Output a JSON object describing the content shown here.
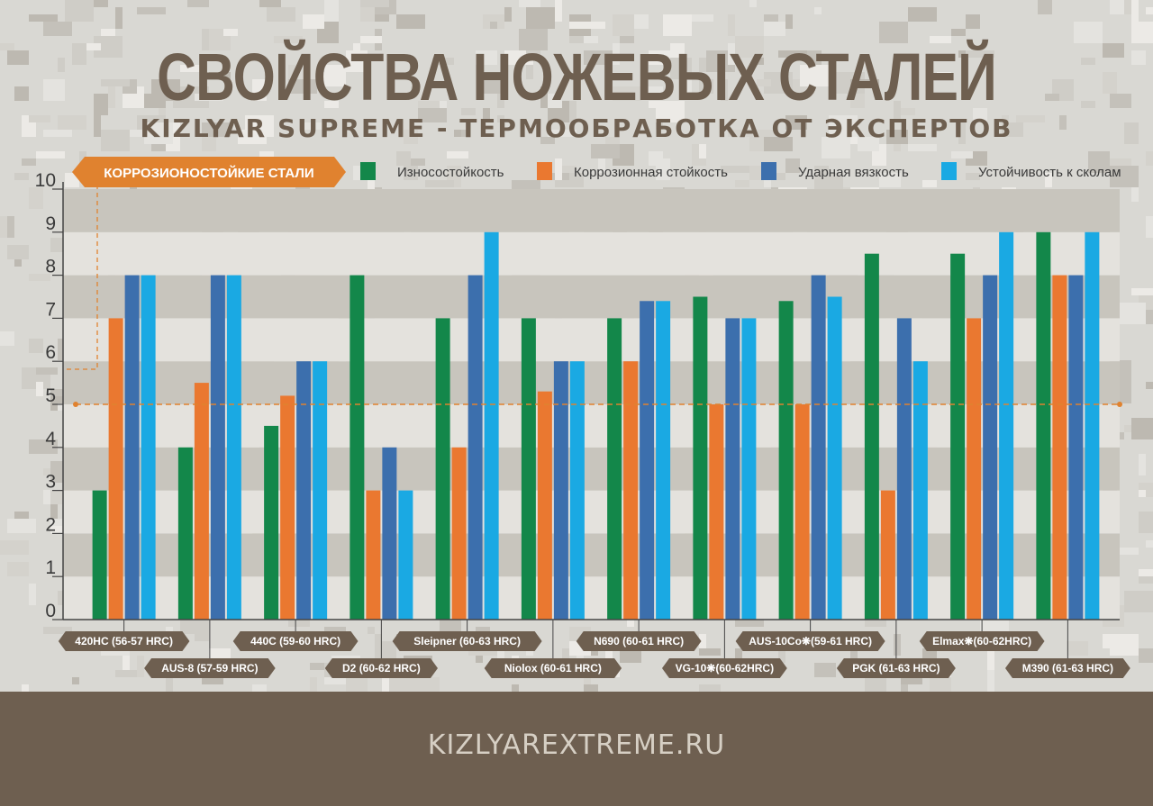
{
  "title": "СВОЙСТВА НОЖЕВЫХ СТАЛЕЙ",
  "subtitle": "KIZLYAR SUPREME - ТЕРМООБРАБОТКА ОТ ЭКСПЕРТОВ",
  "footer": "KIZLYAREXTREME.RU",
  "colors": {
    "wear": "#13874a",
    "corrosion": "#ea7830",
    "impact": "#3c6fad",
    "chipping": "#1aa9e3",
    "brand": "#6e5f50",
    "accent": "#e0822f"
  },
  "chart_data": {
    "type": "bar",
    "ylim": [
      0,
      10
    ],
    "yticks": [
      "0",
      "1",
      "2",
      "3",
      "4",
      "5",
      "6",
      "7",
      "8",
      "9",
      "10"
    ],
    "categories": [
      "420HC (56-57 HRC)",
      "AUS-8 (57-59 HRC)",
      "440C (59-60 HRC)",
      "D2 (60-62 HRC)",
      "Sleipner (60-63 HRC)",
      "Niolox (60-61 HRC)",
      "N690 (60-61 HRC)",
      "VG-10❋(60-62HRC)",
      "AUS-10Co❋(59-61 HRC)",
      "PGK (61-63 HRC)",
      "Elmax❋(60-62HRC)",
      "M390 (61-63 HRC)"
    ],
    "series": [
      {
        "name": "Износостойкость",
        "values": [
          3,
          4,
          4.5,
          8,
          7,
          7,
          7,
          7.5,
          7.4,
          8.5,
          8.5,
          9
        ]
      },
      {
        "name": "Коррозионная стойкость",
        "values": [
          7,
          5.5,
          5.2,
          3,
          4,
          5.3,
          6,
          5,
          5,
          3,
          7,
          8
        ]
      },
      {
        "name": "Ударная вязкость",
        "values": [
          8,
          8,
          6,
          4,
          8,
          6,
          7.4,
          7,
          8,
          7,
          8,
          8
        ]
      },
      {
        "name": "Устойчивость к сколам",
        "values": [
          8,
          8,
          6,
          3,
          9,
          6,
          7.4,
          7,
          7.5,
          6,
          9,
          9
        ]
      }
    ],
    "threshold": {
      "value": 5,
      "label": "КОРРОЗИОНОСТОЙКИЕ СТАЛИ"
    },
    "legend_position": "top"
  }
}
